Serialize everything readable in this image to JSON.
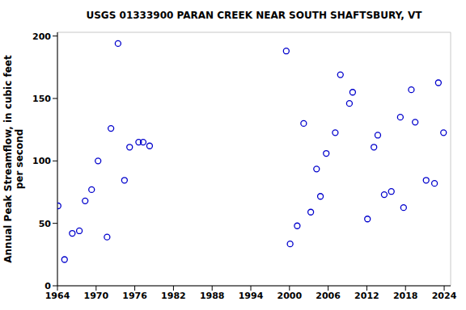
{
  "chart_data": {
    "type": "scatter",
    "title": "USGS 01333900 PARAN CREEK NEAR SOUTH SHAFTSBURY, VT",
    "y_label": "Annual Peak Streamflow, in cubic feet per second",
    "x": [
      1964.1,
      1965.1,
      1966.3,
      1967.4,
      1968.3,
      1969.3,
      1970.3,
      1971.7,
      1972.3,
      1973.4,
      1974.4,
      1975.2,
      1976.6,
      1977.3,
      1978.3,
      1999.5,
      2000.1,
      2001.2,
      2002.2,
      2003.3,
      2004.2,
      2004.8,
      2005.7,
      2007.1,
      2007.9,
      2009.3,
      2009.8,
      2012.1,
      2013.1,
      2013.7,
      2014.7,
      2015.8,
      2017.2,
      2017.7,
      2018.9,
      2019.5,
      2021.2,
      2022.5,
      2023.1,
      2023.9
    ],
    "values": [
      64,
      21,
      42,
      44,
      68,
      77,
      100,
      39,
      126,
      194,
      84.5,
      111,
      115,
      115,
      112,
      188,
      33.5,
      48,
      130,
      59,
      93.5,
      71.6,
      106,
      122.6,
      169,
      146,
      155,
      53.5,
      111,
      120.6,
      73,
      75.5,
      135,
      62.6,
      157,
      131,
      84.5,
      82,
      162.6,
      122.6
    ],
    "color": "#0000cc",
    "marker": "circle-open",
    "xlim": [
      1964,
      2025
    ],
    "ylim": [
      0,
      203
    ],
    "xticks": [
      1964,
      1970,
      1976,
      1982,
      1988,
      1994,
      2000,
      2006,
      2012,
      2018,
      2024
    ],
    "yticks": [
      0,
      50,
      100,
      150,
      200
    ],
    "grid": true
  }
}
